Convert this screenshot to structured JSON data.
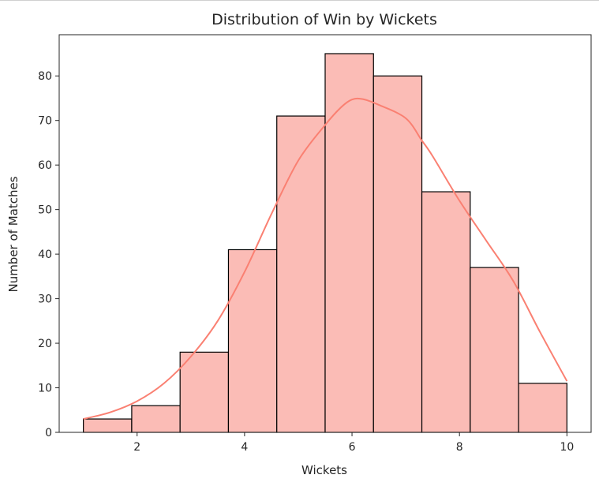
{
  "chart_data": {
    "type": "bar",
    "title": "Distribution of Win by Wickets",
    "xlabel": "Wickets",
    "ylabel": "Number of Matches",
    "bins": [
      {
        "start": 1.0,
        "end": 1.9,
        "value": 3
      },
      {
        "start": 1.9,
        "end": 2.8,
        "value": 6
      },
      {
        "start": 2.8,
        "end": 3.7,
        "value": 18
      },
      {
        "start": 3.7,
        "end": 4.6,
        "value": 41
      },
      {
        "start": 4.6,
        "end": 5.5,
        "value": 71
      },
      {
        "start": 5.5,
        "end": 6.4,
        "value": 85
      },
      {
        "start": 6.4,
        "end": 7.3,
        "value": 80
      },
      {
        "start": 7.3,
        "end": 8.2,
        "value": 54
      },
      {
        "start": 8.2,
        "end": 9.1,
        "value": 37
      },
      {
        "start": 9.1,
        "end": 10.0,
        "value": 11
      }
    ],
    "kde": {
      "x": [
        1.0,
        1.5,
        2.0,
        2.5,
        3.0,
        3.5,
        4.0,
        4.5,
        5.0,
        5.5,
        5.8,
        6.0,
        6.2,
        6.5,
        7.0,
        7.3,
        7.5,
        8.0,
        8.5,
        9.0,
        9.5,
        10.0
      ],
      "y": [
        3,
        4.5,
        7,
        11,
        17,
        25,
        36,
        49,
        61,
        69,
        73,
        74.7,
        74.8,
        73.5,
        70.5,
        65.5,
        62,
        52,
        43,
        34,
        22.5,
        11.5
      ]
    },
    "xticks": [
      2,
      4,
      6,
      8,
      10
    ],
    "yticks": [
      0,
      10,
      20,
      30,
      40,
      50,
      60,
      70,
      80
    ],
    "xlim": [
      0.55,
      10.45
    ],
    "ylim": [
      0,
      89.25
    ],
    "colors": {
      "bar_fill": "#fbbcb6",
      "bar_edge": "#000000",
      "kde_line": "#fa8072",
      "axis": "#262626"
    },
    "grid": false
  }
}
